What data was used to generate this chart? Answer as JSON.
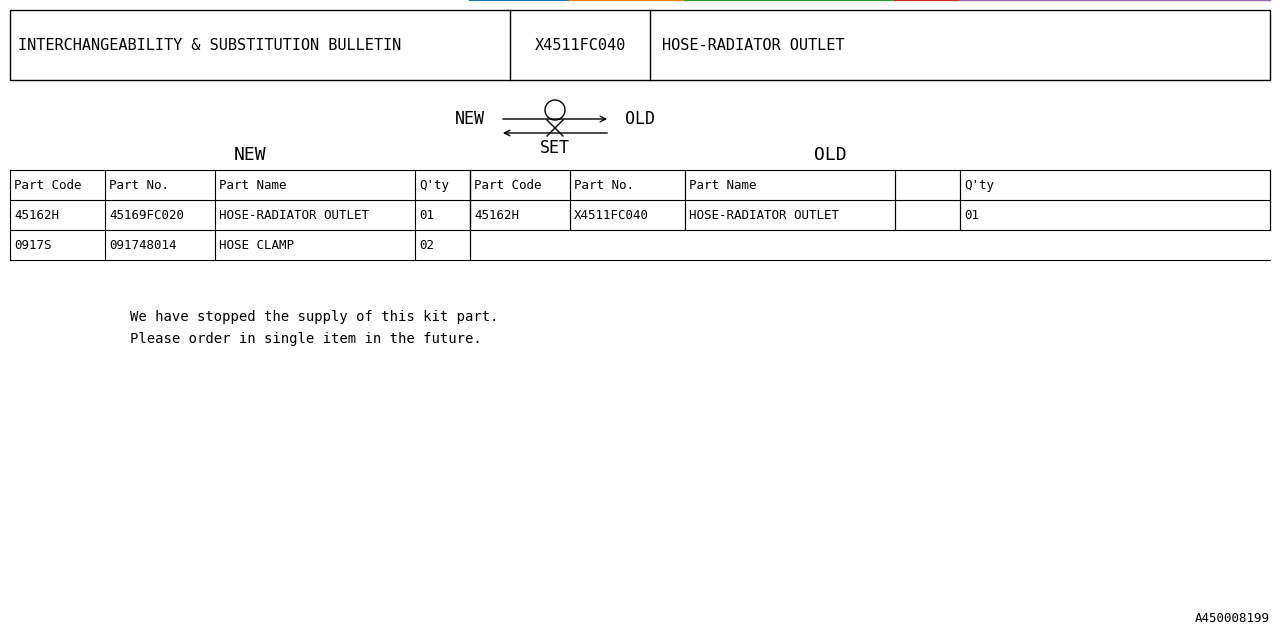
{
  "bg_color": "#ffffff",
  "text_color": "#000000",
  "font_family": "monospace",
  "header_box": {
    "col1": "INTERCHANGEABILITY & SUBSTITUTION BULLETIN",
    "col2": "X4511FC040",
    "col3": "HOSE-RADIATOR OUTLET"
  },
  "symbol_label_new": "NEW",
  "symbol_label_old": "OLD",
  "symbol_label_set": "SET",
  "section_label_new": "NEW",
  "section_label_old": "OLD",
  "table_headers": [
    "Part Code",
    "Part No.",
    "Part Name",
    "Q'ty",
    "Part Code",
    "Part No.",
    "Part Name",
    "Q'ty"
  ],
  "new_rows": [
    [
      "45162H",
      "45169FC020",
      "HOSE-RADIATOR OUTLET",
      "01"
    ],
    [
      "0917S",
      "091748014",
      "HOSE CLAMP",
      "02"
    ]
  ],
  "old_rows": [
    [
      "45162H",
      "X4511FC040",
      "HOSE-RADIATOR OUTLET",
      "01"
    ],
    [
      "",
      "",
      "",
      ""
    ]
  ],
  "note_line1": "We have stopped the supply of this kit part.",
  "note_line2": "Please order in single item in the future.",
  "footer_id": "A450008199"
}
